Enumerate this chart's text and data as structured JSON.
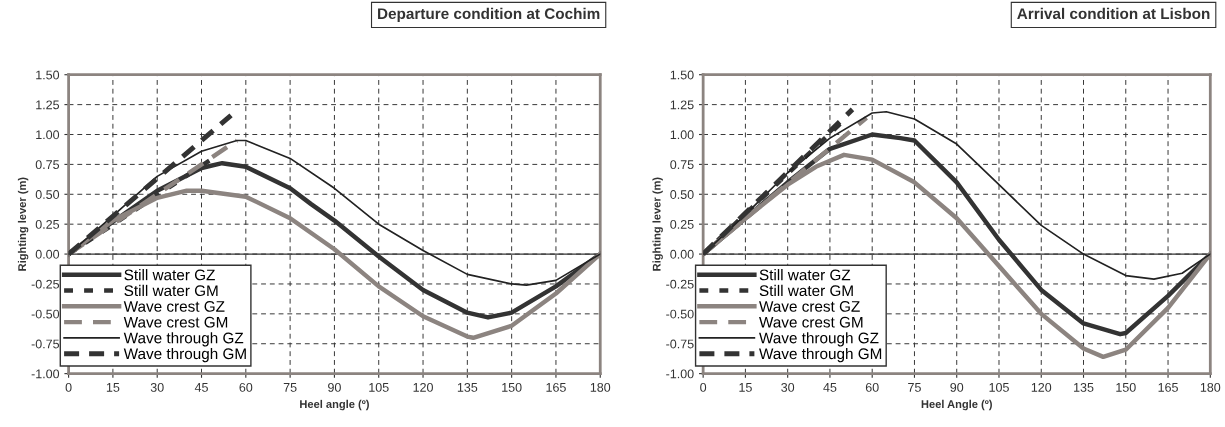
{
  "chart_data": [
    {
      "type": "line",
      "title": "Departure condition at Cochim",
      "xlabel": "Heel angle (º)",
      "ylabel": "Righting lever (m)",
      "xlim": [
        0,
        180
      ],
      "ylim": [
        -1.0,
        1.5
      ],
      "xticks": [
        0,
        15,
        30,
        45,
        60,
        75,
        90,
        105,
        120,
        135,
        150,
        165,
        180
      ],
      "yticks": [
        {
          "value": -1.0,
          "label": "-1.00"
        },
        {
          "value": -0.75,
          "label": "-0.75"
        },
        {
          "value": -0.5,
          "label": "-0.50"
        },
        {
          "value": -0.25,
          "label": "-0.25"
        },
        {
          "value": 0,
          "label": "0.00"
        },
        {
          "value": 0.25,
          "label": "0.25"
        },
        {
          "value": 0.5,
          "label": "0.50"
        },
        {
          "value": 0.75,
          "label": "0.75"
        },
        {
          "value": 1.0,
          "label": "1.00"
        },
        {
          "value": 1.25,
          "label": "1.25"
        },
        {
          "value": 1.5,
          "label": "1.50"
        }
      ],
      "grid": true,
      "legend": "bottom left",
      "ref_lines": [
        {
          "axis": "y",
          "value": 0,
          "color": "#333333",
          "line_style": "solid"
        }
      ],
      "series": [
        {
          "name": "Still water GZ",
          "color": "#333333",
          "line_style": "solid",
          "x": [
            0,
            15,
            30,
            45,
            52,
            60,
            75,
            82,
            90,
            105,
            120,
            135,
            142,
            150,
            165,
            180
          ],
          "values": [
            0,
            0.27,
            0.53,
            0.72,
            0.76,
            0.73,
            0.55,
            0.42,
            0.28,
            -0.02,
            -0.3,
            -0.49,
            -0.53,
            -0.49,
            -0.27,
            0
          ]
        },
        {
          "name": "Still water GM",
          "color": "#333333",
          "line_style": "dashed",
          "x": [
            0,
            50
          ],
          "values": [
            0,
            0.82
          ]
        },
        {
          "name": "Wave crest GZ",
          "color": "#8c8480",
          "line_style": "solid",
          "x": [
            0,
            15,
            30,
            40,
            45,
            60,
            75,
            90,
            105,
            120,
            135,
            137,
            150,
            165,
            180
          ],
          "values": [
            0,
            0.28,
            0.47,
            0.53,
            0.53,
            0.48,
            0.3,
            0.04,
            -0.27,
            -0.52,
            -0.69,
            -0.7,
            -0.6,
            -0.33,
            0
          ]
        },
        {
          "name": "Wave crest GM",
          "color": "#8c8480",
          "line_style": "dashed",
          "x": [
            0,
            57
          ],
          "values": [
            0,
            0.95
          ]
        },
        {
          "name": "Wave through GZ",
          "color": "#222222",
          "line_style": "solid",
          "x": [
            0,
            15,
            30,
            45,
            57,
            60,
            75,
            90,
            105,
            120,
            135,
            150,
            155,
            165,
            180
          ],
          "values": [
            0,
            0.32,
            0.65,
            0.86,
            0.95,
            0.95,
            0.8,
            0.55,
            0.25,
            0.03,
            -0.17,
            -0.25,
            -0.26,
            -0.22,
            0
          ]
        },
        {
          "name": "Wave through GM",
          "color": "#333333",
          "line_style": "dashed",
          "x": [
            0,
            55
          ],
          "values": [
            0,
            1.16
          ]
        }
      ]
    },
    {
      "type": "line",
      "title": "Arrival condition at Lisbon",
      "xlabel": "Heel Angle (º)",
      "ylabel": "Righting lever (m)",
      "xlim": [
        0,
        180
      ],
      "ylim": [
        -1.0,
        1.5
      ],
      "xticks": [
        0,
        15,
        30,
        45,
        60,
        75,
        90,
        105,
        120,
        135,
        150,
        165,
        180
      ],
      "yticks": [
        {
          "value": -1.0,
          "label": "-1.00"
        },
        {
          "value": -0.75,
          "label": "-0.75"
        },
        {
          "value": -0.5,
          "label": "-0.50"
        },
        {
          "value": -0.25,
          "label": "-0.25"
        },
        {
          "value": 0,
          "label": "0.00"
        },
        {
          "value": 0.25,
          "label": "0.25"
        },
        {
          "value": 0.5,
          "label": "0.50"
        },
        {
          "value": 0.75,
          "label": "0.75"
        },
        {
          "value": 1.0,
          "label": "1.00"
        },
        {
          "value": 1.25,
          "label": "1.25"
        },
        {
          "value": 1.5,
          "label": "1.50"
        }
      ],
      "grid": true,
      "legend": "bottom left",
      "ref_lines": [
        {
          "axis": "y",
          "value": 0,
          "color": "#333333",
          "line_style": "solid"
        }
      ],
      "series": [
        {
          "name": "Still water GZ",
          "color": "#333333",
          "line_style": "solid",
          "x": [
            0,
            15,
            30,
            45,
            60,
            70,
            75,
            90,
            105,
            120,
            135,
            148,
            150,
            165,
            180
          ],
          "values": [
            0,
            0.3,
            0.6,
            0.88,
            1.0,
            0.97,
            0.95,
            0.6,
            0.12,
            -0.3,
            -0.58,
            -0.67,
            -0.66,
            -0.35,
            0
          ]
        },
        {
          "name": "Still water GM",
          "color": "#333333",
          "line_style": "dashed",
          "x": [
            0,
            50
          ],
          "values": [
            0,
            1.12
          ]
        },
        {
          "name": "Wave crest GZ",
          "color": "#8c8480",
          "line_style": "solid",
          "x": [
            0,
            15,
            30,
            40,
            45,
            50,
            60,
            75,
            90,
            105,
            120,
            135,
            142,
            150,
            165,
            180
          ],
          "values": [
            0,
            0.3,
            0.58,
            0.73,
            0.78,
            0.83,
            0.79,
            0.6,
            0.3,
            -0.1,
            -0.5,
            -0.79,
            -0.86,
            -0.8,
            -0.45,
            0
          ]
        },
        {
          "name": "Wave crest GM",
          "color": "#8c8480",
          "line_style": "dashed",
          "x": [
            0,
            58
          ],
          "values": [
            0,
            1.14
          ]
        },
        {
          "name": "Wave through GZ",
          "color": "#222222",
          "line_style": "solid",
          "x": [
            0,
            15,
            30,
            45,
            60,
            65,
            75,
            90,
            105,
            120,
            135,
            150,
            160,
            170,
            180
          ],
          "values": [
            0,
            0.33,
            0.68,
            0.97,
            1.18,
            1.19,
            1.13,
            0.92,
            0.58,
            0.24,
            0.0,
            -0.18,
            -0.21,
            -0.16,
            0
          ]
        },
        {
          "name": "Wave through GM",
          "color": "#333333",
          "line_style": "dashed",
          "x": [
            0,
            53
          ],
          "values": [
            0,
            1.21
          ]
        }
      ]
    }
  ]
}
